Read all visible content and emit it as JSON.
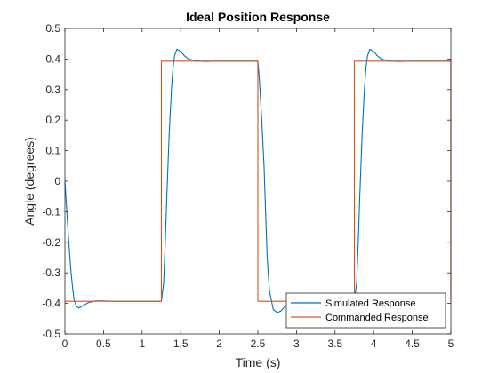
{
  "chart_data": {
    "type": "line",
    "title": "Ideal Position Response",
    "xlabel": "Time (s)",
    "ylabel": "Angle (degrees)",
    "xlim": [
      0,
      5
    ],
    "ylim": [
      -0.5,
      0.5
    ],
    "x_ticks": [
      0,
      0.5,
      1,
      1.5,
      2,
      2.5,
      3,
      3.5,
      4,
      4.5,
      5
    ],
    "x_tick_labels": [
      "0",
      "0.5",
      "1",
      "1.5",
      "2",
      "2.5",
      "3",
      "3.5",
      "4",
      "4.5",
      "5"
    ],
    "y_ticks": [
      -0.5,
      -0.4,
      -0.3,
      -0.2,
      -0.1,
      0,
      0.1,
      0.2,
      0.3,
      0.4,
      0.5
    ],
    "y_tick_labels": [
      "-0.5",
      "-0.4",
      "-0.3",
      "-0.2",
      "-0.1",
      "0",
      "0.1",
      "0.2",
      "0.3",
      "0.4",
      "0.5"
    ],
    "grid": false,
    "legend_position": "bottom-right",
    "series": [
      {
        "name": "Simulated Response",
        "color": "#0072BD",
        "x": [
          0,
          0.02,
          0.05,
          0.08,
          0.1,
          0.12,
          0.15,
          0.18,
          0.2,
          0.25,
          0.3,
          0.35,
          0.4,
          0.5,
          0.6,
          0.8,
          1.0,
          1.25,
          1.28,
          1.3,
          1.32,
          1.35,
          1.38,
          1.4,
          1.42,
          1.45,
          1.5,
          1.55,
          1.6,
          1.7,
          1.8,
          2.0,
          2.2,
          2.5,
          2.52,
          2.55,
          2.58,
          2.6,
          2.62,
          2.65,
          2.7,
          2.75,
          2.8,
          2.85,
          2.9,
          2.95,
          3.0,
          3.1,
          3.2,
          3.4,
          3.6,
          3.75,
          3.78,
          3.8,
          3.82,
          3.85,
          3.88,
          3.9,
          3.92,
          3.95,
          4.0,
          4.05,
          4.1,
          4.2,
          4.3,
          4.5,
          4.8,
          5.0
        ],
        "y": [
          0,
          -0.08,
          -0.2,
          -0.3,
          -0.35,
          -0.39,
          -0.41,
          -0.415,
          -0.412,
          -0.405,
          -0.398,
          -0.394,
          -0.392,
          -0.392,
          -0.393,
          -0.393,
          -0.393,
          -0.393,
          -0.33,
          -0.2,
          -0.05,
          0.15,
          0.3,
          0.37,
          0.41,
          0.432,
          0.425,
          0.41,
          0.4,
          0.394,
          0.392,
          0.393,
          0.393,
          0.393,
          0.33,
          0.2,
          0.05,
          -0.1,
          -0.25,
          -0.36,
          -0.42,
          -0.43,
          -0.425,
          -0.41,
          -0.4,
          -0.395,
          -0.392,
          -0.392,
          -0.393,
          -0.393,
          -0.393,
          -0.393,
          -0.33,
          -0.2,
          -0.05,
          0.15,
          0.3,
          0.37,
          0.41,
          0.432,
          0.425,
          0.41,
          0.4,
          0.394,
          0.392,
          0.393,
          0.393,
          0.393
        ]
      },
      {
        "name": "Commanded Response",
        "color": "#D95319",
        "x": [
          0,
          1.25,
          1.25,
          2.5,
          2.5,
          3.75,
          3.75,
          5.0,
          5.0
        ],
        "y": [
          -0.393,
          -0.393,
          0.393,
          0.393,
          -0.393,
          -0.393,
          0.393,
          0.393,
          -0.393
        ]
      }
    ]
  }
}
